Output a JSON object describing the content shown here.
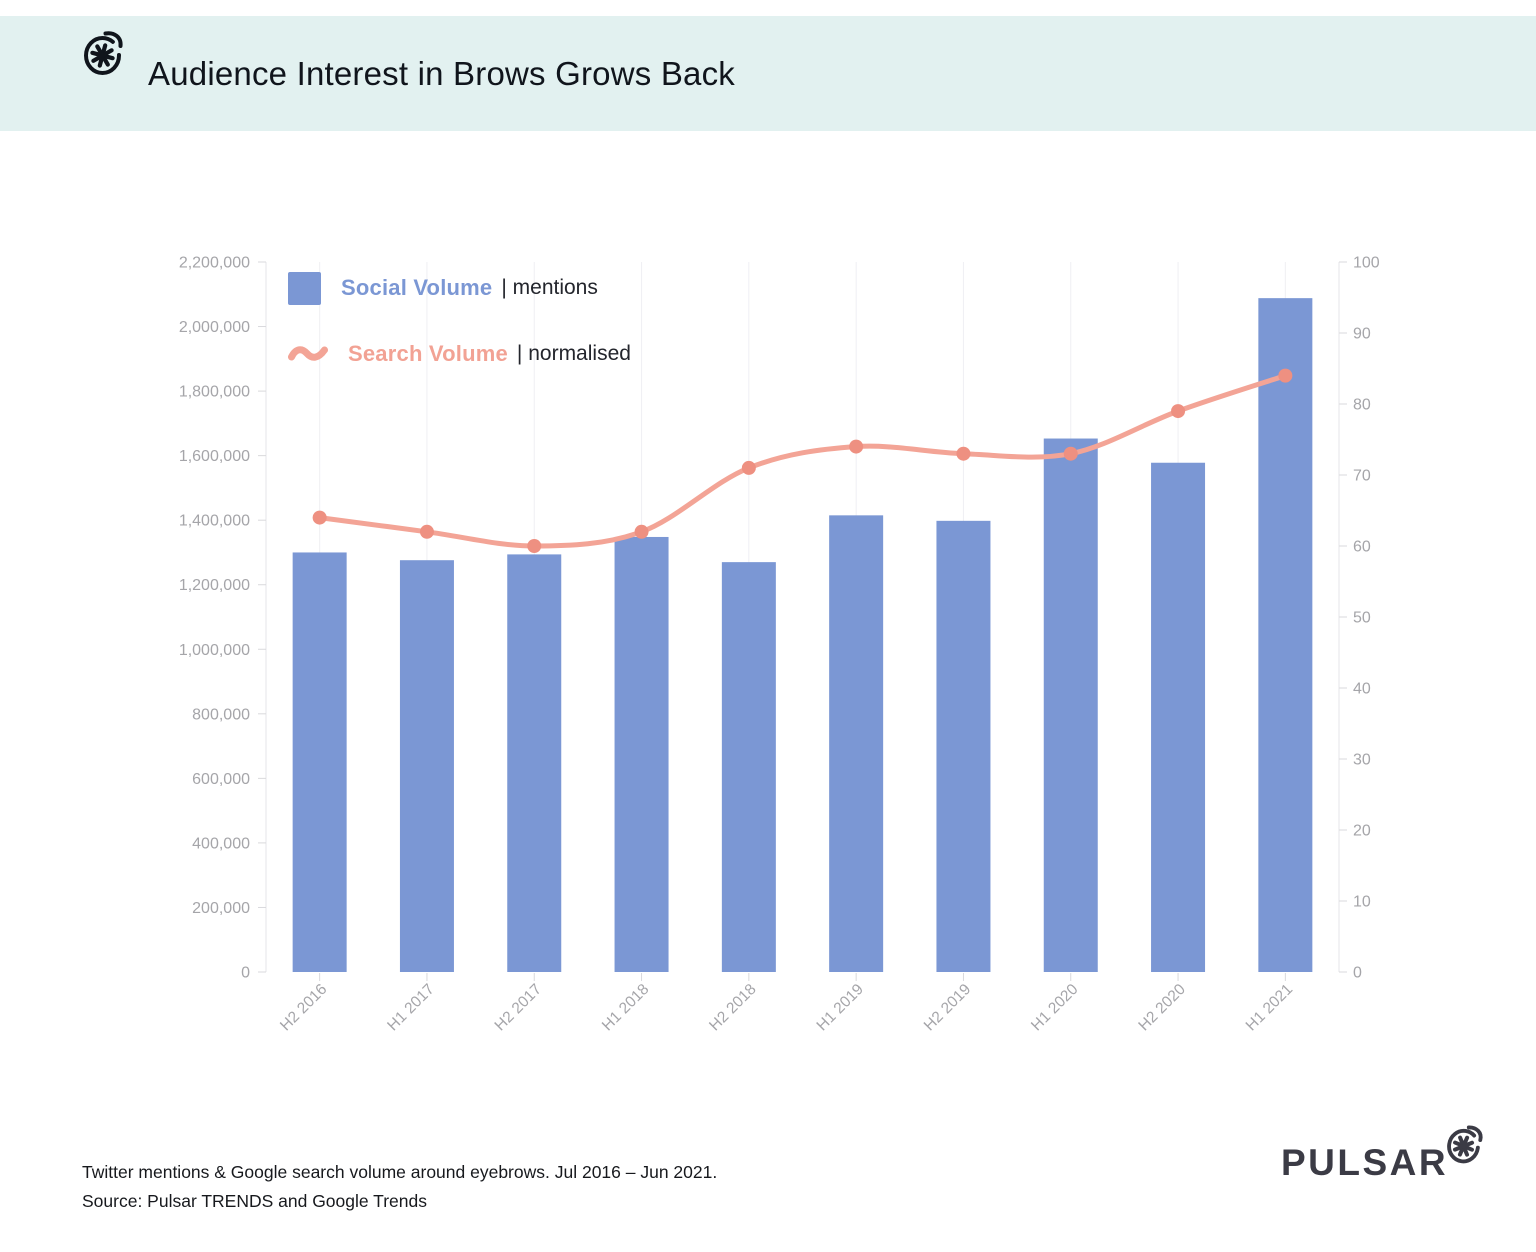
{
  "header": {
    "title": "Audience Interest in Brows Grows Back",
    "band_color": "#e2f1f0"
  },
  "legend": {
    "social": {
      "name": "Social Volume",
      "qualifier": "| mentions",
      "color": "#7b97d4"
    },
    "search": {
      "name": "Search Volume",
      "qualifier": "| normalised",
      "color": "#f2a294"
    }
  },
  "footer": {
    "caption_line1": "Twitter mentions & Google search volume around eyebrows. Jul 2016 – Jun 2021.",
    "caption_line2": "Source: Pulsar TRENDS and Google Trends",
    "brand": "PULSAR"
  },
  "chart_data": {
    "type": "bar+line combo",
    "categories": [
      "H2 2016",
      "H1 2017",
      "H2 2017",
      "H1 2018",
      "H2 2018",
      "H1 2019",
      "H2 2019",
      "H1 2020",
      "H2 2020",
      "H1 2021"
    ],
    "series": [
      {
        "name": "Social Volume",
        "type": "bar",
        "axis": "left",
        "unit": "mentions",
        "color": "#7b97d4",
        "values": [
          1300000,
          1276000,
          1294000,
          1348000,
          1270000,
          1415000,
          1398000,
          1653000,
          1578000,
          2088000
        ]
      },
      {
        "name": "Search Volume",
        "type": "line",
        "axis": "right",
        "unit": "normalised",
        "color": "#f3a496",
        "marker_color": "#ee9081",
        "values": [
          64,
          62,
          60,
          62,
          71,
          74,
          73,
          73,
          79,
          84
        ]
      }
    ],
    "left_axis": {
      "min": 0,
      "max": 2200000,
      "step": 200000
    },
    "right_axis": {
      "min": 0,
      "max": 100,
      "step": 10
    },
    "grid": "vertical gridlines at each category, no horizontal gridlines",
    "legend_position": "top-left inside plot",
    "colors": {
      "axis_line": "#e5e5e8",
      "tick": "#d9d9dc",
      "tick_label": "#a5a5a9",
      "gridline": "#efeff3"
    }
  }
}
